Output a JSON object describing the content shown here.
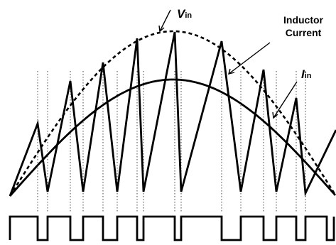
{
  "labels": {
    "vin_main": "V",
    "vin_sub": "in",
    "inductor_line1": "Inductor",
    "inductor_line2": "Current",
    "iin_main": "I",
    "iin_sub": "in"
  },
  "colors": {
    "stroke": "#000000",
    "guide": "#444444",
    "background": "#ffffff"
  }
}
